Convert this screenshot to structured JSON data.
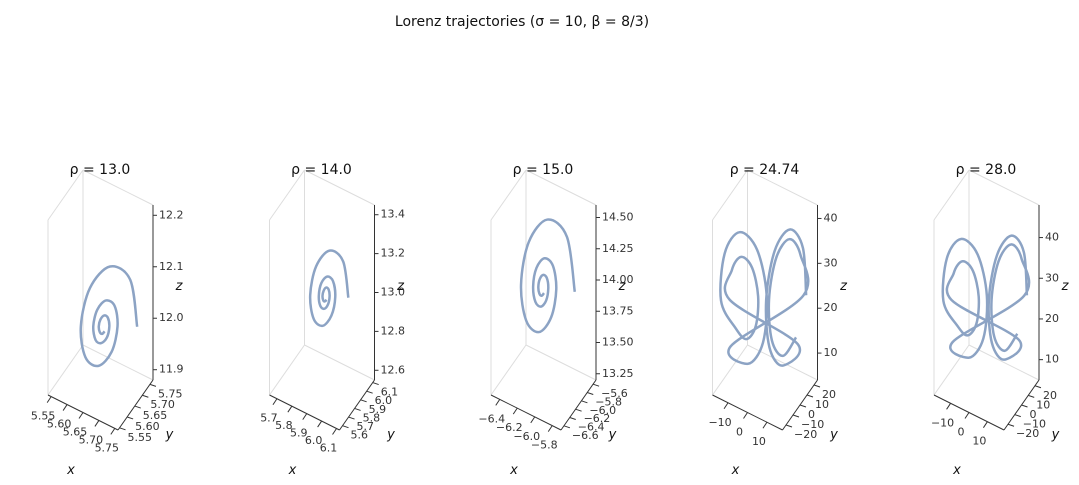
{
  "title": "Lorenz trajectories (σ = 10,  β = 8/3)",
  "chart_data": [
    {
      "type": "line3d",
      "title": "ρ = 13.0",
      "xlabel": "x",
      "ylabel": "y",
      "zlabel": "z",
      "color": "#8ca3c4",
      "x": [
        5.737,
        5.708,
        5.657,
        5.616,
        5.605,
        5.624,
        5.657,
        5.684,
        5.691,
        5.679,
        5.657,
        5.639,
        5.634,
        5.643,
        5.657,
        5.669,
        5.672,
        5.666,
        5.657,
        5.649,
        5.647,
        5.651,
        5.657,
        5.662
      ],
      "y": [
        5.714,
        5.729,
        5.703,
        5.657,
        5.62,
        5.61,
        5.627,
        5.657,
        5.681,
        5.688,
        5.677,
        5.657,
        5.641,
        5.637,
        5.644,
        5.657,
        5.667,
        5.67,
        5.665,
        5.657,
        5.65,
        5.648,
        5.651,
        5.657
      ],
      "z": [
        12,
        12.076,
        12.097,
        12.062,
        12,
        11.95,
        11.936,
        11.959,
        12,
        12.033,
        12.042,
        12.027,
        12,
        11.978,
        11.973,
        11.982,
        12,
        12.014,
        12.018,
        12.011,
        12,
        11.991,
        11.988,
        11.992
      ],
      "xlim": [
        5.54,
        5.76
      ],
      "ylim": [
        5.54,
        5.77
      ],
      "zlim": [
        11.88,
        12.22
      ],
      "xticks": [
        5.55,
        {
          "value": 5.6,
          "label": "5.60"
        },
        5.65,
        {
          "value": 5.7,
          "label": "5.70"
        },
        5.75
      ],
      "yticks": [
        5.55,
        {
          "value": 5.6,
          "label": "5.60"
        },
        5.65,
        {
          "value": 5.7,
          "label": "5.70"
        },
        5.75
      ],
      "zticks": [
        11.9,
        {
          "value": 12,
          "label": "12.0"
        },
        12.1,
        12.2
      ]
    },
    {
      "type": "line3d",
      "title": "ρ = 14.0",
      "xlabel": "x",
      "ylabel": "y",
      "zlabel": "z",
      "color": "#8ca3c4",
      "x": [
        6.008,
        5.964,
        5.888,
        5.826,
        5.809,
        5.838,
        5.888,
        5.929,
        5.94,
        5.921,
        5.888,
        5.861,
        5.854,
        5.866,
        5.888,
        5.906,
        5.91,
        5.902,
        5.888,
        5.877,
        5.873,
        5.879,
        5.888,
        5.896
      ],
      "y": [
        5.973,
        5.996,
        5.957,
        5.888,
        5.832,
        5.817,
        5.843,
        5.888,
        5.924,
        5.934,
        5.918,
        5.888,
        5.864,
        5.858,
        5.869,
        5.888,
        5.904,
        5.908,
        5.901,
        5.888,
        5.878,
        5.875,
        5.88,
        5.888
      ],
      "z": [
        13,
        13.159,
        13.203,
        13.129,
        13,
        12.896,
        12.867,
        12.916,
        13,
        13.069,
        13.087,
        13.056,
        13,
        12.955,
        12.943,
        12.964,
        13,
        13.03,
        13.038,
        13.024,
        13,
        12.981,
        12.976,
        12.984
      ],
      "xlim": [
        5.65,
        6.12
      ],
      "ylim": [
        5.55,
        6.13
      ],
      "zlim": [
        12.55,
        13.45
      ],
      "xticks": [
        5.7,
        5.8,
        5.9,
        {
          "value": 6,
          "label": "6.0"
        },
        6.1
      ],
      "yticks": [
        5.6,
        5.7,
        5.8,
        5.9,
        {
          "value": 6,
          "label": "6.0"
        },
        6.1
      ],
      "zticks": [
        12.6,
        12.8,
        {
          "value": 13,
          "label": "13.0"
        },
        13.2,
        13.4
      ]
    },
    {
      "type": "line3d",
      "title": "ρ = 15.0",
      "xlabel": "x",
      "ylabel": "y",
      "zlabel": "z",
      "color": "#8ca3c4",
      "x": [
        -5.81,
        -5.919,
        -6.11,
        -6.265,
        -6.307,
        -6.235,
        -6.11,
        -6.009,
        -5.981,
        -6.028,
        -6.11,
        -6.177,
        -6.195,
        -6.164,
        -6.11,
        -6.066,
        -6.055,
        -6.075,
        -6.11,
        -6.139,
        -6.147,
        -6.133,
        -6.11,
        -6.091
      ],
      "y": [
        -5.898,
        -5.84,
        -5.938,
        -6.11,
        -6.249,
        -6.287,
        -6.223,
        -6.11,
        -6.019,
        -5.994,
        -6.036,
        -6.11,
        -6.17,
        -6.186,
        -6.159,
        -6.11,
        -6.071,
        -6.06,
        -6.078,
        -6.11,
        -6.136,
        -6.143,
        -6.131,
        -6.11
      ],
      "z": [
        14,
        14.382,
        14.486,
        14.309,
        14,
        13.75,
        13.681,
        13.797,
        14,
        14.164,
        14.209,
        14.133,
        14,
        13.892,
        13.863,
        13.912,
        14,
        14.071,
        14.09,
        14.057,
        14,
        13.954,
        13.941,
        13.962
      ],
      "xlim": [
        -6.5,
        -5.7
      ],
      "ylim": [
        -6.7,
        -5.5
      ],
      "zlim": [
        13.2,
        14.6
      ],
      "xticks": [
        {
          "value": -6.4,
          "label": "−6.4"
        },
        {
          "value": -6.2,
          "label": "−6.2"
        },
        {
          "value": -6,
          "label": "−6.0"
        },
        {
          "value": -5.8,
          "label": "−5.8"
        }
      ],
      "yticks": [
        {
          "value": -6.6,
          "label": "−6.6"
        },
        {
          "value": -6.4,
          "label": "−6.4"
        },
        {
          "value": -6.2,
          "label": "−6.2"
        },
        {
          "value": -6,
          "label": "−6.0"
        },
        {
          "value": -5.8,
          "label": "−5.8"
        },
        {
          "value": -5.6,
          "label": "−5.6"
        }
      ],
      "zticks": [
        13.25,
        {
          "value": 13.5,
          "label": "13.50"
        },
        13.75,
        {
          "value": 14,
          "label": "14.00"
        },
        14.25,
        {
          "value": 14.5,
          "label": "14.50"
        }
      ]
    },
    {
      "type": "line3d",
      "title": "ρ = 24.74",
      "xlabel": "x",
      "ylabel": "y",
      "zlabel": "z",
      "color": "#8ca3c4",
      "x": [
        15,
        12.95,
        8,
        3.05,
        1,
        3.05,
        8,
        12.95,
        -13,
        -11.54,
        -8,
        -4.46,
        -3,
        -4.46,
        -8,
        -11.54,
        -16,
        -13.66,
        -8,
        -2.34,
        0,
        -2.34,
        -8,
        -13.66,
        14,
        12.24,
        8,
        3.76,
        2,
        3.76,
        8,
        12.24
      ],
      "y": [
        17.09,
        18.15,
        13.25,
        5.28,
        -1.09,
        -2.15,
        2.75,
        10.72,
        -14.5,
        -15.25,
        -11.75,
        -6.06,
        -1.5,
        -0.76,
        -4.25,
        -9.94,
        -18.39,
        -19.59,
        -14,
        -4.89,
        2.39,
        3.59,
        -2,
        -11.11,
        15.79,
        16.69,
        12.5,
        5.67,
        0.21,
        -0.69,
        3.5,
        10.33
      ],
      "z": [
        24,
        33.9,
        38,
        33.9,
        24,
        14.1,
        10,
        14.1,
        24,
        31.07,
        34,
        31.07,
        24,
        16.93,
        14,
        16.93,
        24,
        35.31,
        40,
        35.31,
        24,
        12.69,
        8,
        12.69,
        24,
        32.48,
        36,
        32.48,
        24,
        15.52,
        12,
        15.52
      ],
      "xlim": [
        -18,
        18
      ],
      "ylim": [
        -25,
        25
      ],
      "zlim": [
        4,
        43
      ],
      "xticks": [
        {
          "value": -10,
          "label": "−10"
        },
        0,
        10
      ],
      "yticks": [
        {
          "value": -20,
          "label": "−20"
        },
        {
          "value": -10,
          "label": "−10"
        },
        0,
        10,
        20
      ],
      "zticks": [
        10,
        20,
        30,
        40
      ]
    },
    {
      "type": "line3d",
      "title": "ρ = 28.0",
      "xlabel": "x",
      "ylabel": "y",
      "zlabel": "z",
      "color": "#8ca3c4",
      "x": [
        15.5,
        13.45,
        8.5,
        3.55,
        1.5,
        3.55,
        8.5,
        13.45,
        -13.5,
        -12.04,
        -8.5,
        -4.96,
        -3.5,
        -4.96,
        -8.5,
        -12.04,
        -16.5,
        -14.16,
        -8.5,
        -2.84,
        -0.5,
        -2.84,
        -8.5,
        -14.16,
        14.5,
        12.74,
        8.5,
        4.26,
        2.5,
        4.26,
        8.5,
        12.74
      ],
      "y": [
        17.59,
        18.65,
        13.75,
        5.78,
        -0.59,
        -1.65,
        3.25,
        11.22,
        -15,
        -15.75,
        -12.25,
        -6.56,
        -2,
        -1.26,
        -4.75,
        -10.44,
        -18.89,
        -20.09,
        -14.5,
        -5.39,
        1.89,
        3.09,
        -2.5,
        -11.61,
        16.29,
        17.19,
        13,
        6.17,
        0.71,
        -0.19,
        4,
        10.83
      ],
      "z": [
        27,
        36.9,
        41,
        36.9,
        27,
        17.1,
        13,
        17.1,
        27,
        34.07,
        37,
        34.07,
        27,
        19.93,
        17,
        19.93,
        27,
        38.31,
        43,
        38.31,
        27,
        15.69,
        11,
        15.69,
        27,
        35.48,
        39,
        35.48,
        27,
        18.52,
        15,
        18.52
      ],
      "xlim": [
        -19,
        19
      ],
      "ylim": [
        -26,
        26
      ],
      "zlim": [
        5,
        48
      ],
      "xticks": [
        {
          "value": -10,
          "label": "−10"
        },
        0,
        10
      ],
      "yticks": [
        {
          "value": -20,
          "label": "−20"
        },
        {
          "value": -10,
          "label": "−10"
        },
        0,
        10,
        20
      ],
      "zticks": [
        10,
        20,
        30,
        40
      ]
    }
  ]
}
